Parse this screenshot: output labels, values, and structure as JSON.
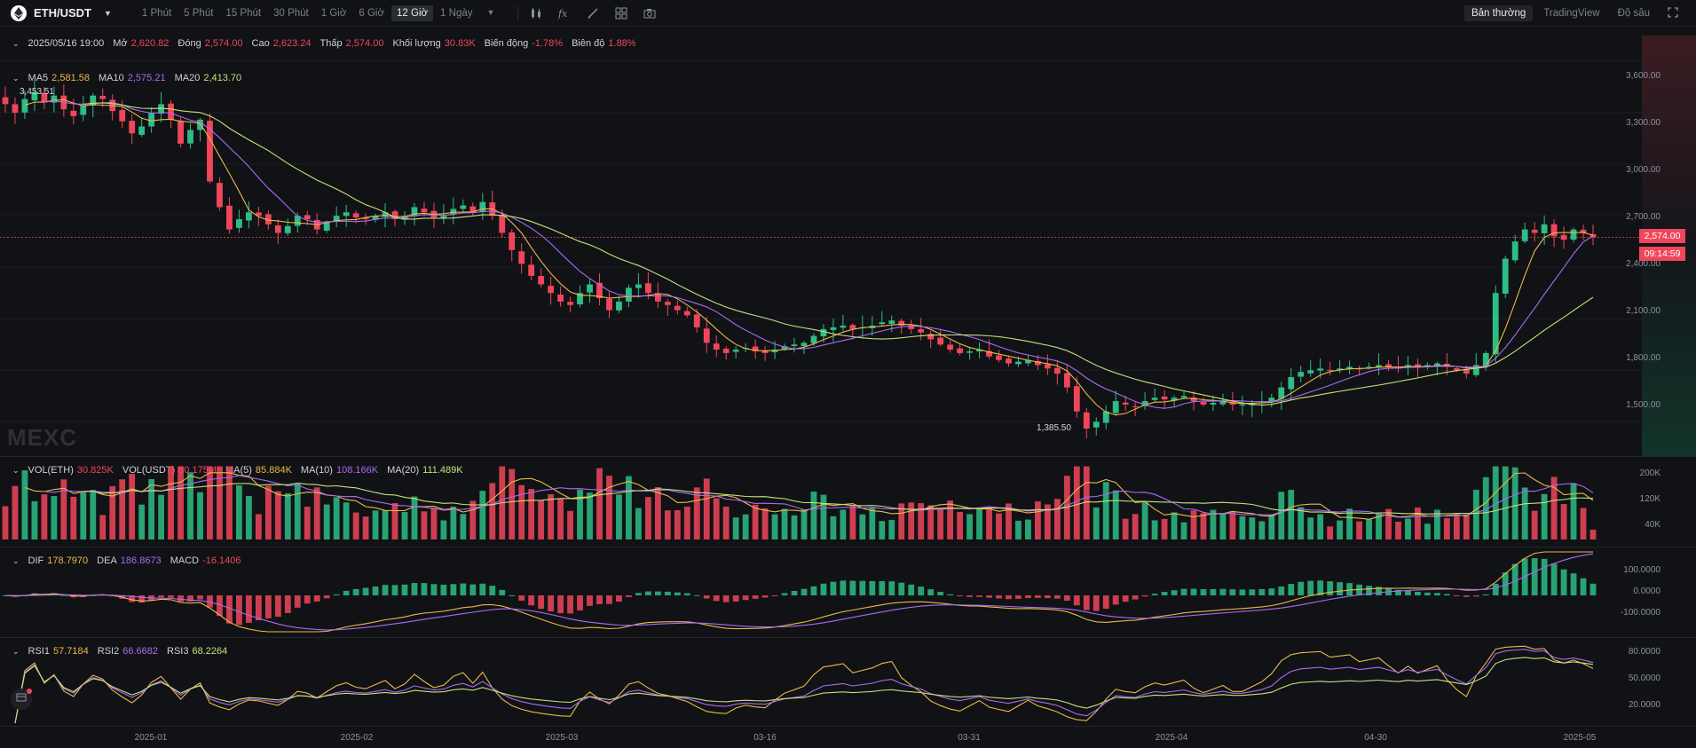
{
  "header": {
    "pair": "ETH/USDT",
    "pair_icon": "ethereum-icon",
    "intervals": [
      "1 Phút",
      "5 Phút",
      "15 Phút",
      "30 Phút",
      "1 Giờ",
      "6 Giờ",
      "12 Giờ",
      "1 Ngày"
    ],
    "active_interval": "12 Giờ",
    "tools": [
      "candle-style-icon",
      "indicator-fx-icon",
      "draw-pen-icon",
      "layout-grid-icon",
      "camera-icon"
    ],
    "modes": [
      "Bản thường",
      "TradingView",
      "Độ sâu"
    ],
    "active_mode": "Bản thường",
    "fullscreen_icon": "fullscreen-icon"
  },
  "ohlc": {
    "date": "2025/05/16 19:00",
    "open_label": "Mở",
    "open": "2,620.82",
    "close_label": "Đóng",
    "close": "2,574.00",
    "high_label": "Cao",
    "high": "2,623.24",
    "low_label": "Thấp",
    "low": "2,574.00",
    "volume_label": "Khối lượng",
    "volume": "30.83K",
    "change_label": "Biến động",
    "change": "-1.78%",
    "amplitude_label": "Biên độ",
    "amplitude": "1.88%"
  },
  "ma": {
    "ma5_label": "MA5",
    "ma5": "2,581.58",
    "ma10_label": "MA10",
    "ma10": "2,575.21",
    "ma20_label": "MA20",
    "ma20": "2,413.70"
  },
  "vol": {
    "vol_eth_label": "VOL(ETH)",
    "vol_eth": "30.825K",
    "vol_usdt_label": "VOL(USDT)",
    "vol_usdt": "80.175M",
    "ma5_label": "MA(5)",
    "ma5": "85.884K",
    "ma10_label": "MA(10)",
    "ma10": "108.166K",
    "ma20_label": "MA(20)",
    "ma20": "111.489K"
  },
  "macd": {
    "dif_label": "DIF",
    "dif": "178.7970",
    "dea_label": "DEA",
    "dea": "186.8673",
    "macd_label": "MACD",
    "macd": "-16.1406"
  },
  "rsi": {
    "rsi1_label": "RSI1",
    "rsi1": "57.7184",
    "rsi2_label": "RSI2",
    "rsi2": "66.6682",
    "rsi3_label": "RSI3",
    "rsi3": "68.2264"
  },
  "price_axis": [
    "3,600.00",
    "3,300.00",
    "3,000.00",
    "2,700.00",
    "2,400.00",
    "2,100.00",
    "1,800.00",
    "1,500.00"
  ],
  "vol_axis": [
    "200K",
    "120K",
    "40K"
  ],
  "macd_axis": [
    "100.0000",
    "0.0000",
    "-100.0000"
  ],
  "rsi_axis": [
    "80.0000",
    "50.0000",
    "20.0000"
  ],
  "x_axis": [
    "2025-01",
    "2025-02",
    "2025-03",
    "03-16",
    "03-31",
    "2025-04",
    "04-30",
    "2025-05"
  ],
  "last_price": "2,574.00",
  "countdown": "09:14:59",
  "high_marker": "3,453.51",
  "low_marker": "1,385.50",
  "watermark": "MEXC",
  "colors": {
    "up": "#2dbd85",
    "down": "#f0465a",
    "ma5": "#e9b949",
    "ma10": "#a86cf0",
    "ma20": "#c7e07a",
    "bg": "#111216"
  },
  "chart_data": [
    {
      "type": "candlestick",
      "title": "ETH/USDT 12 Giờ",
      "x_ticks": [
        "2025-01",
        "2025-02",
        "2025-03",
        "03-16",
        "03-31",
        "2025-04",
        "04-30",
        "2025-05"
      ],
      "ylim": [
        1300,
        3750
      ],
      "close_series": [
        3350,
        3300,
        3380,
        3420,
        3360,
        3400,
        3320,
        3280,
        3340,
        3400,
        3380,
        3310,
        3250,
        3180,
        3220,
        3300,
        3350,
        3260,
        3120,
        3200,
        3260,
        2900,
        2750,
        2620,
        2680,
        2720,
        2700,
        2650,
        2600,
        2640,
        2700,
        2680,
        2620,
        2660,
        2700,
        2720,
        2690,
        2680,
        2700,
        2720,
        2680,
        2700,
        2750,
        2720,
        2690,
        2700,
        2740,
        2760,
        2720,
        2780,
        2700,
        2600,
        2500,
        2420,
        2350,
        2300,
        2250,
        2200,
        2180,
        2250,
        2300,
        2220,
        2150,
        2200,
        2280,
        2300,
        2250,
        2200,
        2180,
        2150,
        2120,
        2050,
        1960,
        1920,
        1900,
        1920,
        1930,
        1910,
        1900,
        1920,
        1940,
        1950,
        1960,
        2000,
        2040,
        2050,
        2060,
        2040,
        2050,
        2060,
        2080,
        2090,
        2060,
        2040,
        2020,
        1980,
        1950,
        1920,
        1900,
        1910,
        1920,
        1880,
        1860,
        1840,
        1850,
        1860,
        1830,
        1810,
        1780,
        1700,
        1560,
        1460,
        1500,
        1560,
        1620,
        1600,
        1590,
        1620,
        1640,
        1630,
        1640,
        1650,
        1620,
        1600,
        1610,
        1620,
        1600,
        1600,
        1610,
        1620,
        1640,
        1700,
        1760,
        1790,
        1800,
        1810,
        1800,
        1810,
        1820,
        1810,
        1820,
        1830,
        1820,
        1810,
        1830,
        1820,
        1830,
        1840,
        1820,
        1800,
        1780,
        1830,
        1900,
        2250,
        2450,
        2550,
        2620,
        2600,
        2650,
        2580,
        2560,
        2620,
        2600,
        2574
      ],
      "ma5_last": 2581.58,
      "ma10_last": 2575.21,
      "ma20_last": 2413.7,
      "high": 3453.51,
      "low": 1385.5,
      "last": 2574.0
    },
    {
      "type": "bar",
      "title": "VOL(ETH)",
      "ylim": [
        0,
        240000
      ],
      "y_ticks": [
        "200K",
        "120K",
        "40K"
      ],
      "last": 30825
    },
    {
      "type": "line",
      "title": "MACD",
      "series": [
        {
          "name": "DIF",
          "last": 178.797
        },
        {
          "name": "DEA",
          "last": 186.8673
        },
        {
          "name": "MACD",
          "last": -16.1406
        }
      ],
      "ylim": [
        -150,
        200
      ]
    },
    {
      "type": "line",
      "title": "RSI",
      "series": [
        {
          "name": "RSI1",
          "last": 57.7184
        },
        {
          "name": "RSI2",
          "last": 66.6682
        },
        {
          "name": "RSI3",
          "last": 68.2264
        }
      ],
      "ylim": [
        0,
        100
      ]
    }
  ]
}
